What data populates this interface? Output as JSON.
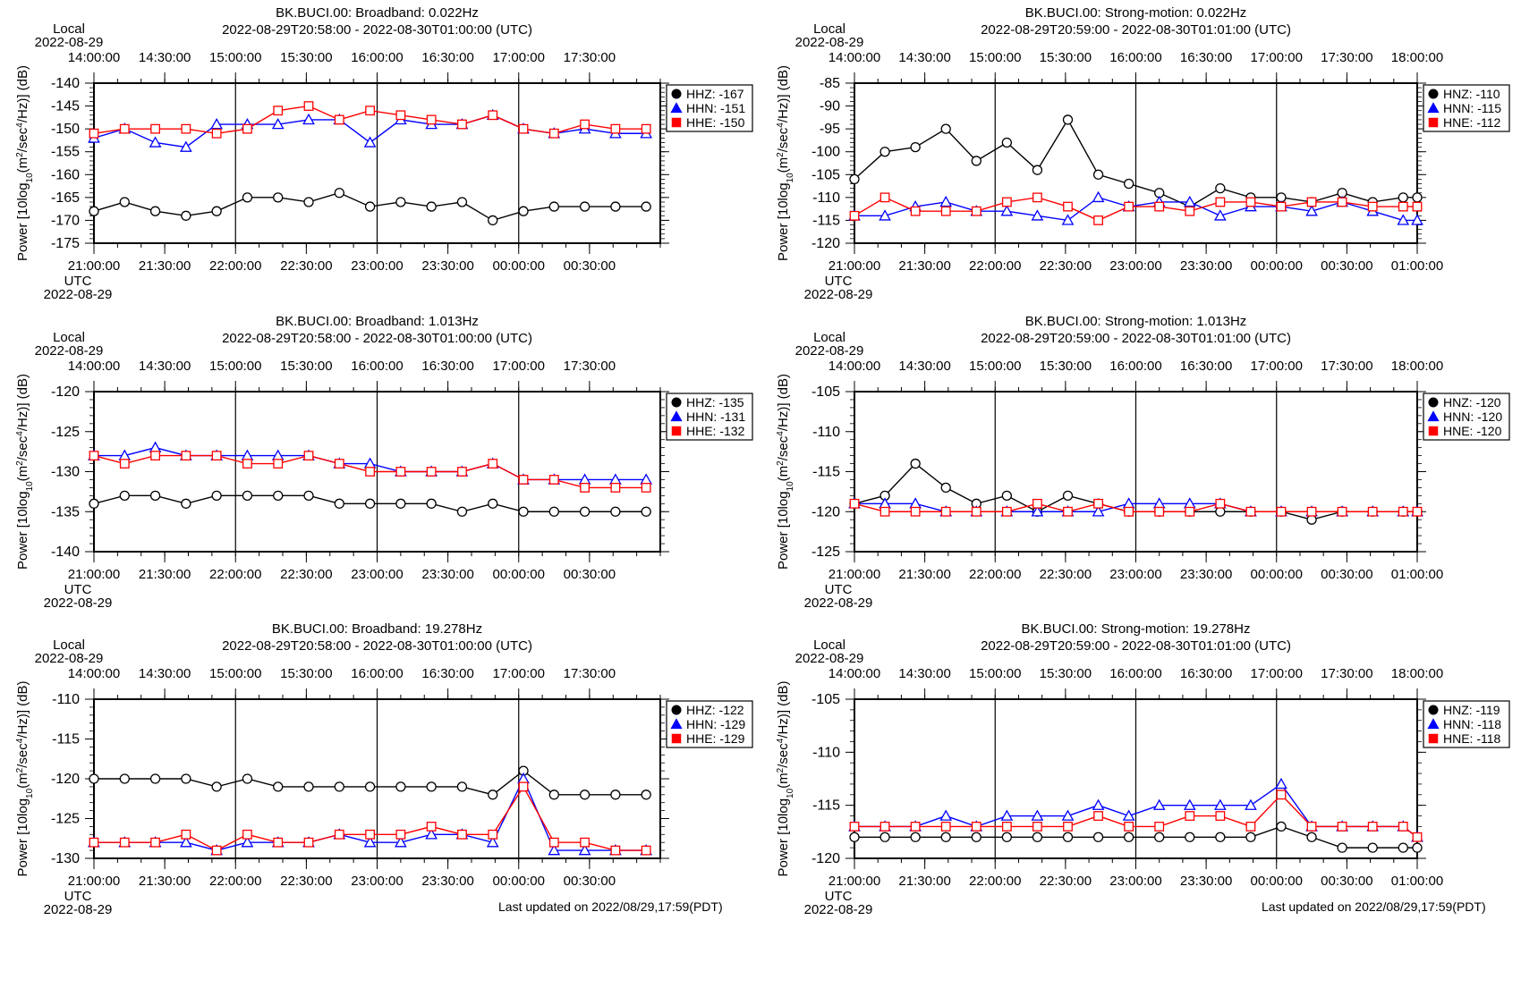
{
  "colors": {
    "HZ": "#000000",
    "HN": "#0000ff",
    "HE": "#ff0000"
  },
  "markers": {
    "HZ": "circle",
    "HN": "triangle",
    "HE": "square"
  },
  "footer_text": "Last updated on 2022/08/29,17:59(PDT)",
  "chart_data": [
    {
      "type": "line",
      "title": "BK.BUCI.00: Broadband: 0.022Hz",
      "subtitle": "2022-08-29T20:58:00 - 2022-08-30T01:00:00 (UTC)",
      "ylabel": "Power [10log10(m2/sec4/Hz)] (dB)",
      "ylim": [
        -175,
        -140
      ],
      "yticks": [
        -140,
        -145,
        -150,
        -155,
        -160,
        -165,
        -170,
        -175
      ],
      "local_label": "Local",
      "local_date": "2022-08-29",
      "local_ticks": [
        "14:00:00",
        "14:30:00",
        "15:00:00",
        "15:30:00",
        "16:00:00",
        "16:30:00",
        "17:00:00",
        "17:30:00"
      ],
      "utc_label": "UTC",
      "utc_date": "2022-08-29",
      "utc_ticks": [
        "21:00:00",
        "21:30:00",
        "22:00:00",
        "22:30:00",
        "23:00:00",
        "23:30:00",
        "00:00:00",
        "00:30:00"
      ],
      "x_range": [
        "2022-08-29T21:00",
        "2022-08-30T01:00"
      ],
      "vlines": [
        "2022-08-29T22:00",
        "2022-08-29T23:00",
        "2022-08-30T00:00"
      ],
      "times": [
        "2022-08-29T21:00",
        "2022-08-29T21:13",
        "2022-08-29T21:26",
        "2022-08-29T21:39",
        "2022-08-29T21:52",
        "2022-08-29T22:05",
        "2022-08-29T22:18",
        "2022-08-29T22:31",
        "2022-08-29T22:44",
        "2022-08-29T22:57",
        "2022-08-29T23:10",
        "2022-08-29T23:23",
        "2022-08-29T23:36",
        "2022-08-29T23:49",
        "2022-08-30T00:02",
        "2022-08-30T00:15",
        "2022-08-30T00:28",
        "2022-08-30T00:41",
        "2022-08-30T00:54"
      ],
      "series": [
        {
          "name": "HHZ",
          "key": "HZ",
          "legend": "HHZ: -167",
          "values": [
            -168,
            -166,
            -168,
            -169,
            -168,
            -165,
            -165,
            -166,
            -164,
            -167,
            -166,
            -167,
            -166,
            -170,
            -168,
            -167,
            -167,
            -167,
            -167
          ]
        },
        {
          "name": "HHN",
          "key": "HN",
          "legend": "HHN: -151",
          "values": [
            -152,
            -150,
            -153,
            -154,
            -149,
            -149,
            -149,
            -148,
            -148,
            -153,
            -148,
            -149,
            -149,
            -147,
            -150,
            -151,
            -150,
            -151,
            -151
          ]
        },
        {
          "name": "HHE",
          "key": "HE",
          "legend": "HHE: -150",
          "values": [
            -151,
            -150,
            -150,
            -150,
            -151,
            -150,
            -146,
            -145,
            -148,
            -146,
            -147,
            -148,
            -149,
            -147,
            -150,
            -151,
            -149,
            -150,
            -150
          ]
        }
      ]
    },
    {
      "type": "line",
      "title": "BK.BUCI.00: Strong-motion: 0.022Hz",
      "subtitle": "2022-08-29T20:59:00 - 2022-08-30T01:01:00 (UTC)",
      "ylabel": "Power [10log10(m2/sec4/Hz)] (dB)",
      "ylim": [
        -120,
        -85
      ],
      "yticks": [
        -85,
        -90,
        -95,
        -100,
        -105,
        -110,
        -115,
        -120
      ],
      "local_label": "Local",
      "local_date": "2022-08-29",
      "local_ticks": [
        "14:00:00",
        "14:30:00",
        "15:00:00",
        "15:30:00",
        "16:00:00",
        "16:30:00",
        "17:00:00",
        "17:30:00",
        "18:00:00"
      ],
      "utc_label": "UTC",
      "utc_date": "2022-08-29",
      "utc_ticks": [
        "21:00:00",
        "21:30:00",
        "22:00:00",
        "22:30:00",
        "23:00:00",
        "23:30:00",
        "00:00:00",
        "00:30:00",
        "01:00:00"
      ],
      "x_range": [
        "2022-08-29T21:00",
        "2022-08-30T01:00"
      ],
      "vlines": [
        "2022-08-29T22:00",
        "2022-08-29T23:00",
        "2022-08-30T00:00"
      ],
      "times": [
        "2022-08-29T21:00",
        "2022-08-29T21:13",
        "2022-08-29T21:26",
        "2022-08-29T21:39",
        "2022-08-29T21:52",
        "2022-08-29T22:05",
        "2022-08-29T22:18",
        "2022-08-29T22:31",
        "2022-08-29T22:44",
        "2022-08-29T22:57",
        "2022-08-29T23:10",
        "2022-08-29T23:23",
        "2022-08-29T23:36",
        "2022-08-29T23:49",
        "2022-08-30T00:02",
        "2022-08-30T00:15",
        "2022-08-30T00:28",
        "2022-08-30T00:41",
        "2022-08-30T00:54",
        "2022-08-30T01:00"
      ],
      "series": [
        {
          "name": "HNZ",
          "key": "HZ",
          "legend": "HNZ: -110",
          "values": [
            -106,
            -100,
            -99,
            -95,
            -102,
            -98,
            -104,
            -93,
            -105,
            -107,
            -109,
            -112,
            -108,
            -110,
            -110,
            -111,
            -109,
            -111,
            -110,
            -110
          ]
        },
        {
          "name": "HNN",
          "key": "HN",
          "legend": "HNN: -115",
          "values": [
            -114,
            -114,
            -112,
            -111,
            -113,
            -113,
            -114,
            -115,
            -110,
            -112,
            -111,
            -111,
            -114,
            -112,
            -112,
            -113,
            -111,
            -113,
            -115,
            -115
          ]
        },
        {
          "name": "HNE",
          "key": "HE",
          "legend": "HNE: -112",
          "values": [
            -114,
            -110,
            -113,
            -113,
            -113,
            -111,
            -110,
            -112,
            -115,
            -112,
            -112,
            -113,
            -111,
            -111,
            -112,
            -111,
            -111,
            -112,
            -112,
            -112
          ]
        }
      ]
    },
    {
      "type": "line",
      "title": "BK.BUCI.00: Broadband: 1.013Hz",
      "subtitle": "2022-08-29T20:58:00 - 2022-08-30T01:00:00 (UTC)",
      "ylabel": "Power [10log10(m2/sec4/Hz)] (dB)",
      "ylim": [
        -140,
        -120
      ],
      "yticks": [
        -120,
        -125,
        -130,
        -135,
        -140
      ],
      "local_label": "Local",
      "local_date": "2022-08-29",
      "local_ticks": [
        "14:00:00",
        "14:30:00",
        "15:00:00",
        "15:30:00",
        "16:00:00",
        "16:30:00",
        "17:00:00",
        "17:30:00"
      ],
      "utc_label": "UTC",
      "utc_date": "2022-08-29",
      "utc_ticks": [
        "21:00:00",
        "21:30:00",
        "22:00:00",
        "22:30:00",
        "23:00:00",
        "23:30:00",
        "00:00:00",
        "00:30:00"
      ],
      "x_range": [
        "2022-08-29T21:00",
        "2022-08-30T01:00"
      ],
      "vlines": [
        "2022-08-29T22:00",
        "2022-08-29T23:00",
        "2022-08-30T00:00"
      ],
      "times": [
        "2022-08-29T21:00",
        "2022-08-29T21:13",
        "2022-08-29T21:26",
        "2022-08-29T21:39",
        "2022-08-29T21:52",
        "2022-08-29T22:05",
        "2022-08-29T22:18",
        "2022-08-29T22:31",
        "2022-08-29T22:44",
        "2022-08-29T22:57",
        "2022-08-29T23:10",
        "2022-08-29T23:23",
        "2022-08-29T23:36",
        "2022-08-29T23:49",
        "2022-08-30T00:02",
        "2022-08-30T00:15",
        "2022-08-30T00:28",
        "2022-08-30T00:41",
        "2022-08-30T00:54"
      ],
      "series": [
        {
          "name": "HHZ",
          "key": "HZ",
          "legend": "HHZ: -135",
          "values": [
            -134,
            -133,
            -133,
            -134,
            -133,
            -133,
            -133,
            -133,
            -134,
            -134,
            -134,
            -134,
            -135,
            -134,
            -135,
            -135,
            -135,
            -135,
            -135
          ]
        },
        {
          "name": "HHN",
          "key": "HN",
          "legend": "HHN: -131",
          "values": [
            -128,
            -128,
            -127,
            -128,
            -128,
            -128,
            -128,
            -128,
            -129,
            -129,
            -130,
            -130,
            -130,
            -129,
            -131,
            -131,
            -131,
            -131,
            -131
          ]
        },
        {
          "name": "HHE",
          "key": "HE",
          "legend": "HHE: -132",
          "values": [
            -128,
            -129,
            -128,
            -128,
            -128,
            -129,
            -129,
            -128,
            -129,
            -130,
            -130,
            -130,
            -130,
            -129,
            -131,
            -131,
            -132,
            -132,
            -132
          ]
        }
      ]
    },
    {
      "type": "line",
      "title": "BK.BUCI.00: Strong-motion: 1.013Hz",
      "subtitle": "2022-08-29T20:59:00 - 2022-08-30T01:01:00 (UTC)",
      "ylabel": "Power [10log10(m2/sec4/Hz)] (dB)",
      "ylim": [
        -125,
        -105
      ],
      "yticks": [
        -105,
        -110,
        -115,
        -120,
        -125
      ],
      "local_label": "Local",
      "local_date": "2022-08-29",
      "local_ticks": [
        "14:00:00",
        "14:30:00",
        "15:00:00",
        "15:30:00",
        "16:00:00",
        "16:30:00",
        "17:00:00",
        "17:30:00",
        "18:00:00"
      ],
      "utc_label": "UTC",
      "utc_date": "2022-08-29",
      "utc_ticks": [
        "21:00:00",
        "21:30:00",
        "22:00:00",
        "22:30:00",
        "23:00:00",
        "23:30:00",
        "00:00:00",
        "00:30:00",
        "01:00:00"
      ],
      "x_range": [
        "2022-08-29T21:00",
        "2022-08-30T01:00"
      ],
      "vlines": [
        "2022-08-29T22:00",
        "2022-08-29T23:00",
        "2022-08-30T00:00"
      ],
      "times": [
        "2022-08-29T21:00",
        "2022-08-29T21:13",
        "2022-08-29T21:26",
        "2022-08-29T21:39",
        "2022-08-29T21:52",
        "2022-08-29T22:05",
        "2022-08-29T22:18",
        "2022-08-29T22:31",
        "2022-08-29T22:44",
        "2022-08-29T22:57",
        "2022-08-29T23:10",
        "2022-08-29T23:23",
        "2022-08-29T23:36",
        "2022-08-29T23:49",
        "2022-08-30T00:02",
        "2022-08-30T00:15",
        "2022-08-30T00:28",
        "2022-08-30T00:41",
        "2022-08-30T00:54",
        "2022-08-30T01:00"
      ],
      "series": [
        {
          "name": "HNZ",
          "key": "HZ",
          "legend": "HNZ: -120",
          "values": [
            -119,
            -118,
            -114,
            -117,
            -119,
            -118,
            -120,
            -118,
            -119,
            -120,
            -120,
            -120,
            -120,
            -120,
            -120,
            -121,
            -120,
            -120,
            -120,
            -120
          ]
        },
        {
          "name": "HNN",
          "key": "HN",
          "legend": "HNN: -120",
          "values": [
            -119,
            -119,
            -119,
            -120,
            -120,
            -120,
            -120,
            -120,
            -120,
            -119,
            -119,
            -119,
            -119,
            -120,
            -120,
            -120,
            -120,
            -120,
            -120,
            -120
          ]
        },
        {
          "name": "HNE",
          "key": "HE",
          "legend": "HNE: -120",
          "values": [
            -119,
            -120,
            -120,
            -120,
            -120,
            -120,
            -119,
            -120,
            -119,
            -120,
            -120,
            -120,
            -119,
            -120,
            -120,
            -120,
            -120,
            -120,
            -120,
            -120
          ]
        }
      ]
    },
    {
      "type": "line",
      "title": "BK.BUCI.00: Broadband: 19.278Hz",
      "subtitle": "2022-08-29T20:58:00 - 2022-08-30T01:00:00 (UTC)",
      "ylabel": "Power [10log10(m2/sec4/Hz)] (dB)",
      "ylim": [
        -130,
        -110
      ],
      "yticks": [
        -110,
        -115,
        -120,
        -125,
        -130
      ],
      "local_label": "Local",
      "local_date": "2022-08-29",
      "local_ticks": [
        "14:00:00",
        "14:30:00",
        "15:00:00",
        "15:30:00",
        "16:00:00",
        "16:30:00",
        "17:00:00",
        "17:30:00"
      ],
      "utc_label": "UTC",
      "utc_date": "2022-08-29",
      "utc_ticks": [
        "21:00:00",
        "21:30:00",
        "22:00:00",
        "22:30:00",
        "23:00:00",
        "23:30:00",
        "00:00:00",
        "00:30:00"
      ],
      "x_range": [
        "2022-08-29T21:00",
        "2022-08-30T01:00"
      ],
      "vlines": [
        "2022-08-29T22:00",
        "2022-08-29T23:00",
        "2022-08-30T00:00"
      ],
      "times": [
        "2022-08-29T21:00",
        "2022-08-29T21:13",
        "2022-08-29T21:26",
        "2022-08-29T21:39",
        "2022-08-29T21:52",
        "2022-08-29T22:05",
        "2022-08-29T22:18",
        "2022-08-29T22:31",
        "2022-08-29T22:44",
        "2022-08-29T22:57",
        "2022-08-29T23:10",
        "2022-08-29T23:23",
        "2022-08-29T23:36",
        "2022-08-29T23:49",
        "2022-08-30T00:02",
        "2022-08-30T00:15",
        "2022-08-30T00:28",
        "2022-08-30T00:41",
        "2022-08-30T00:54"
      ],
      "series": [
        {
          "name": "HHZ",
          "key": "HZ",
          "legend": "HHZ: -122",
          "values": [
            -120,
            -120,
            -120,
            -120,
            -121,
            -120,
            -121,
            -121,
            -121,
            -121,
            -121,
            -121,
            -121,
            -122,
            -119,
            -122,
            -122,
            -122,
            -122
          ]
        },
        {
          "name": "HHN",
          "key": "HN",
          "legend": "HHN: -129",
          "values": [
            -128,
            -128,
            -128,
            -128,
            -129,
            -128,
            -128,
            -128,
            -127,
            -128,
            -128,
            -127,
            -127,
            -128,
            -120,
            -129,
            -129,
            -129,
            -129
          ]
        },
        {
          "name": "HHE",
          "key": "HE",
          "legend": "HHE: -129",
          "values": [
            -128,
            -128,
            -128,
            -127,
            -129,
            -127,
            -128,
            -128,
            -127,
            -127,
            -127,
            -126,
            -127,
            -127,
            -121,
            -128,
            -128,
            -129,
            -129
          ]
        }
      ]
    },
    {
      "type": "line",
      "title": "BK.BUCI.00: Strong-motion: 19.278Hz",
      "subtitle": "2022-08-29T20:59:00 - 2022-08-30T01:01:00 (UTC)",
      "ylabel": "Power [10log10(m2/sec4/Hz)] (dB)",
      "ylim": [
        -120,
        -105
      ],
      "yticks": [
        -105,
        -110,
        -115,
        -120
      ],
      "local_label": "Local",
      "local_date": "2022-08-29",
      "local_ticks": [
        "14:00:00",
        "14:30:00",
        "15:00:00",
        "15:30:00",
        "16:00:00",
        "16:30:00",
        "17:00:00",
        "17:30:00",
        "18:00:00"
      ],
      "utc_label": "UTC",
      "utc_date": "2022-08-29",
      "utc_ticks": [
        "21:00:00",
        "21:30:00",
        "22:00:00",
        "22:30:00",
        "23:00:00",
        "23:30:00",
        "00:00:00",
        "00:30:00",
        "01:00:00"
      ],
      "x_range": [
        "2022-08-29T21:00",
        "2022-08-30T01:00"
      ],
      "vlines": [
        "2022-08-29T22:00",
        "2022-08-29T23:00",
        "2022-08-30T00:00"
      ],
      "times": [
        "2022-08-29T21:00",
        "2022-08-29T21:13",
        "2022-08-29T21:26",
        "2022-08-29T21:39",
        "2022-08-29T21:52",
        "2022-08-29T22:05",
        "2022-08-29T22:18",
        "2022-08-29T22:31",
        "2022-08-29T22:44",
        "2022-08-29T22:57",
        "2022-08-29T23:10",
        "2022-08-29T23:23",
        "2022-08-29T23:36",
        "2022-08-29T23:49",
        "2022-08-30T00:02",
        "2022-08-30T00:15",
        "2022-08-30T00:28",
        "2022-08-30T00:41",
        "2022-08-30T00:54",
        "2022-08-30T01:00"
      ],
      "series": [
        {
          "name": "HNZ",
          "key": "HZ",
          "legend": "HNZ: -119",
          "values": [
            -118,
            -118,
            -118,
            -118,
            -118,
            -118,
            -118,
            -118,
            -118,
            -118,
            -118,
            -118,
            -118,
            -118,
            -117,
            -118,
            -119,
            -119,
            -119,
            -119
          ]
        },
        {
          "name": "HNN",
          "key": "HN",
          "legend": "HNN: -118",
          "values": [
            -117,
            -117,
            -117,
            -116,
            -117,
            -116,
            -116,
            -116,
            -115,
            -116,
            -115,
            -115,
            -115,
            -115,
            -113,
            -117,
            -117,
            -117,
            -117,
            -118
          ]
        },
        {
          "name": "HNE",
          "key": "HE",
          "legend": "HNE: -118",
          "values": [
            -117,
            -117,
            -117,
            -117,
            -117,
            -117,
            -117,
            -117,
            -116,
            -117,
            -117,
            -116,
            -116,
            -117,
            -114,
            -117,
            -117,
            -117,
            -117,
            -118
          ]
        }
      ]
    }
  ]
}
